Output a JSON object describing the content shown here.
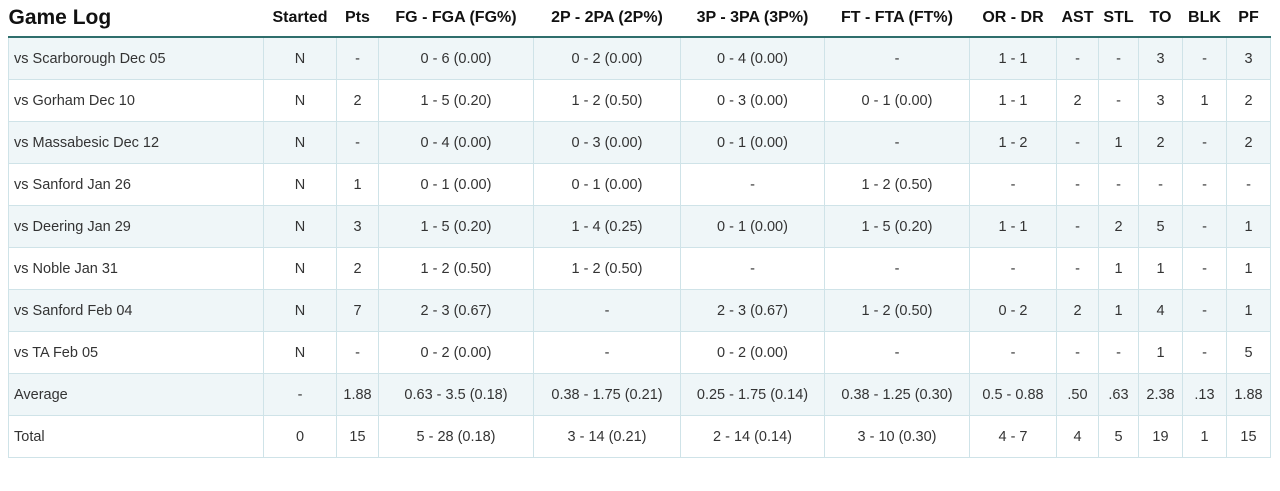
{
  "title": "Game Log",
  "columns": [
    "Started",
    "Pts",
    "FG - FGA (FG%)",
    "2P - 2PA (2P%)",
    "3P - 3PA (3P%)",
    "FT - FTA (FT%)",
    "OR - DR",
    "AST",
    "STL",
    "TO",
    "BLK",
    "PF"
  ],
  "rows": [
    [
      "vs Scarborough Dec 05",
      "N",
      "-",
      "0 - 6 (0.00)",
      "0 - 2 (0.00)",
      "0 - 4 (0.00)",
      "-",
      "1 - 1",
      "-",
      "-",
      "3",
      "-",
      "3"
    ],
    [
      "vs Gorham Dec 10",
      "N",
      "2",
      "1 - 5 (0.20)",
      "1 - 2 (0.50)",
      "0 - 3 (0.00)",
      "0 - 1 (0.00)",
      "1 - 1",
      "2",
      "-",
      "3",
      "1",
      "2"
    ],
    [
      "vs Massabesic Dec 12",
      "N",
      "-",
      "0 - 4 (0.00)",
      "0 - 3 (0.00)",
      "0 - 1 (0.00)",
      "-",
      "1 - 2",
      "-",
      "1",
      "2",
      "-",
      "2"
    ],
    [
      "vs Sanford Jan 26",
      "N",
      "1",
      "0 - 1 (0.00)",
      "0 - 1 (0.00)",
      "-",
      "1 - 2 (0.50)",
      "-",
      "-",
      "-",
      "-",
      "-",
      "-"
    ],
    [
      "vs Deering Jan 29",
      "N",
      "3",
      "1 - 5 (0.20)",
      "1 - 4 (0.25)",
      "0 - 1 (0.00)",
      "1 - 5 (0.20)",
      "1 - 1",
      "-",
      "2",
      "5",
      "-",
      "1"
    ],
    [
      "vs Noble Jan 31",
      "N",
      "2",
      "1 - 2 (0.50)",
      "1 - 2 (0.50)",
      "-",
      "-",
      "-",
      "-",
      "1",
      "1",
      "-",
      "1"
    ],
    [
      "vs Sanford Feb 04",
      "N",
      "7",
      "2 - 3 (0.67)",
      "-",
      "2 - 3 (0.67)",
      "1 - 2 (0.50)",
      "0 - 2",
      "2",
      "1",
      "4",
      "-",
      "1"
    ],
    [
      "vs TA Feb 05",
      "N",
      "-",
      "0 - 2 (0.00)",
      "-",
      "0 - 2 (0.00)",
      "-",
      "-",
      "-",
      "-",
      "1",
      "-",
      "5"
    ],
    [
      "Average",
      "-",
      "1.88",
      "0.63 - 3.5 (0.18)",
      "0.38 - 1.75 (0.21)",
      "0.25 - 1.75 (0.14)",
      "0.38 - 1.25 (0.30)",
      "0.5 - 0.88",
      ".50",
      ".63",
      "2.38",
      ".13",
      "1.88"
    ],
    [
      "Total",
      "0",
      "15",
      "5 - 28 (0.18)",
      "3 - 14 (0.21)",
      "2 - 14 (0.14)",
      "3 - 10 (0.30)",
      "4 - 7",
      "4",
      "5",
      "19",
      "1",
      "15"
    ]
  ],
  "colors": {
    "header_rule": "#2f6e6c",
    "row_stripe": "#eff6f8",
    "cell_border": "#cfe3e8",
    "text": "#333333"
  }
}
